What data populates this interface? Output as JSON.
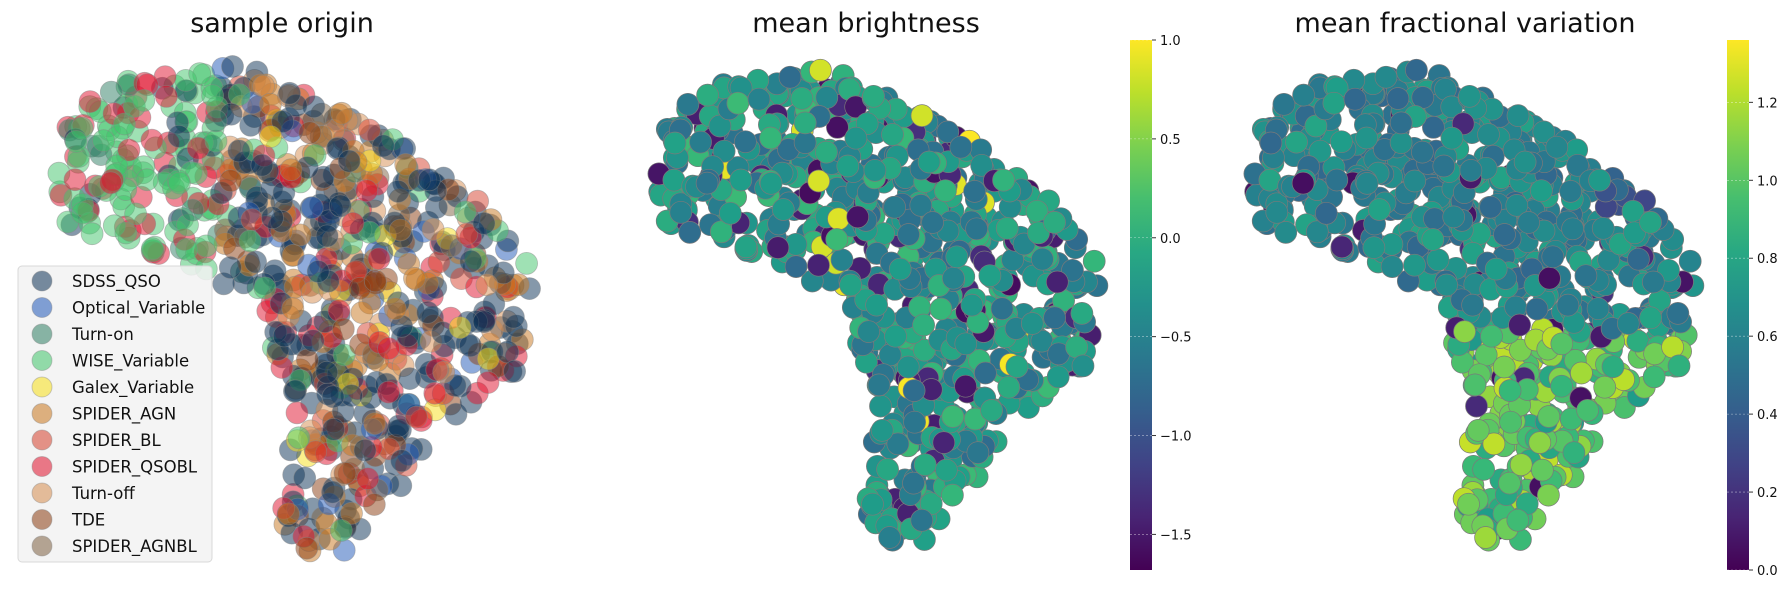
{
  "chart_data": [
    {
      "type": "scatter",
      "title": "sample origin",
      "legend_position": "lower-left",
      "series": [
        {
          "name": "SDSS_QSO",
          "color": "#0c3256"
        },
        {
          "name": "Optical_Variable",
          "color": "#1f58b8"
        },
        {
          "name": "Turn-on",
          "color": "#2e7d63"
        },
        {
          "name": "WISE_Variable",
          "color": "#40c46a"
        },
        {
          "name": "Galex_Variable",
          "color": "#f7e017"
        },
        {
          "name": "SPIDER_AGN",
          "color": "#c8761d"
        },
        {
          "name": "SPIDER_BL",
          "color": "#d6402c"
        },
        {
          "name": "SPIDER_QSOBL",
          "color": "#e0102c"
        },
        {
          "name": "Turn-off",
          "color": "#d68c4e"
        },
        {
          "name": "TDE",
          "color": "#8a3c10"
        },
        {
          "name": "SPIDER_AGNBL",
          "color": "#7d6142"
        }
      ]
    },
    {
      "type": "scatter",
      "title": "mean brightness",
      "colormap": "viridis",
      "colorbar": {
        "min": -1.68,
        "max": 1.0,
        "ticks": [
          "1.0",
          "0.5",
          "0.0",
          "−0.5",
          "−1.0",
          "−1.5"
        ],
        "tick_values": [
          1.0,
          0.5,
          0.0,
          -0.5,
          -1.0,
          -1.5
        ]
      }
    },
    {
      "type": "scatter",
      "title": "mean fractional variation",
      "colormap": "viridis",
      "colorbar": {
        "min": 0.0,
        "max": 1.36,
        "ticks": [
          "1.2",
          "1.0",
          "0.8",
          "0.6",
          "0.4",
          "0.2",
          "0.0"
        ],
        "tick_values": [
          1.2,
          1.0,
          0.8,
          0.6,
          0.4,
          0.2,
          0.0
        ]
      }
    }
  ]
}
